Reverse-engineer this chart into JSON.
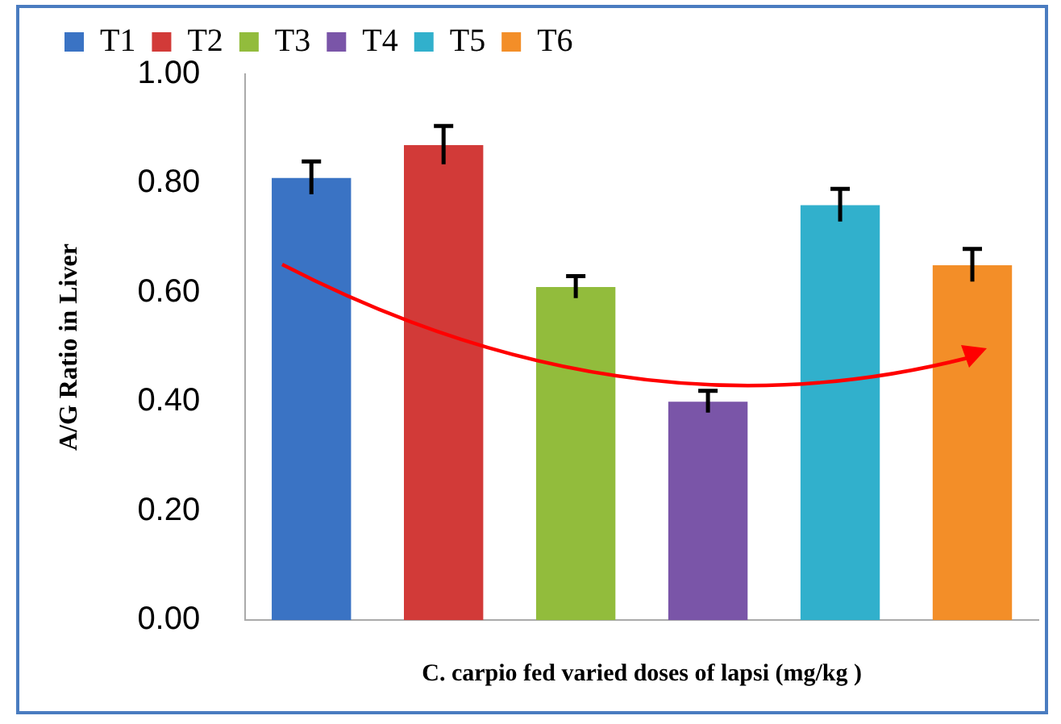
{
  "chart_data": {
    "type": "bar",
    "xlabel": "C. carpio fed varied doses of lapsi (mg/kg )",
    "ylabel": "A/G Ratio in Liver",
    "categories": [
      null,
      null,
      null,
      null,
      null,
      null
    ],
    "series": [
      {
        "name": "T1",
        "color": "#3a73c4",
        "values": [
          0.81,
          null,
          null,
          null,
          null,
          null
        ],
        "errors": [
          0.03,
          null,
          null,
          null,
          null,
          null
        ]
      },
      {
        "name": "T2",
        "color": "#d23a38",
        "values": [
          null,
          0.87,
          null,
          null,
          null,
          null
        ],
        "errors": [
          null,
          0.035,
          null,
          null,
          null,
          null
        ]
      },
      {
        "name": "T3",
        "color": "#92bc3c",
        "values": [
          null,
          null,
          0.61,
          null,
          null,
          null
        ],
        "errors": [
          null,
          null,
          0.02,
          null,
          null,
          null
        ]
      },
      {
        "name": "T4",
        "color": "#7a55a8",
        "values": [
          null,
          null,
          null,
          0.4,
          null,
          null
        ],
        "errors": [
          null,
          null,
          null,
          0.02,
          null,
          null
        ]
      },
      {
        "name": "T5",
        "color": "#31b0cc",
        "values": [
          null,
          null,
          null,
          null,
          0.76,
          null
        ],
        "errors": [
          null,
          null,
          null,
          null,
          0.03,
          null
        ]
      },
      {
        "name": "T6",
        "color": "#f38e28",
        "values": [
          null,
          null,
          null,
          null,
          null,
          0.65
        ],
        "errors": [
          null,
          null,
          null,
          null,
          null,
          0.03
        ]
      }
    ],
    "ylim": [
      0,
      1
    ],
    "yticks": [
      {
        "value": 0,
        "label": "0.00"
      },
      {
        "value": 0.2,
        "label": "0.20"
      },
      {
        "value": 0.4,
        "label": "0.40"
      },
      {
        "value": 0.6,
        "label": "0.60"
      },
      {
        "value": 0.8,
        "label": "0.80"
      },
      {
        "value": 1,
        "label": "1.00"
      }
    ],
    "grid": false,
    "legend": "top left"
  }
}
